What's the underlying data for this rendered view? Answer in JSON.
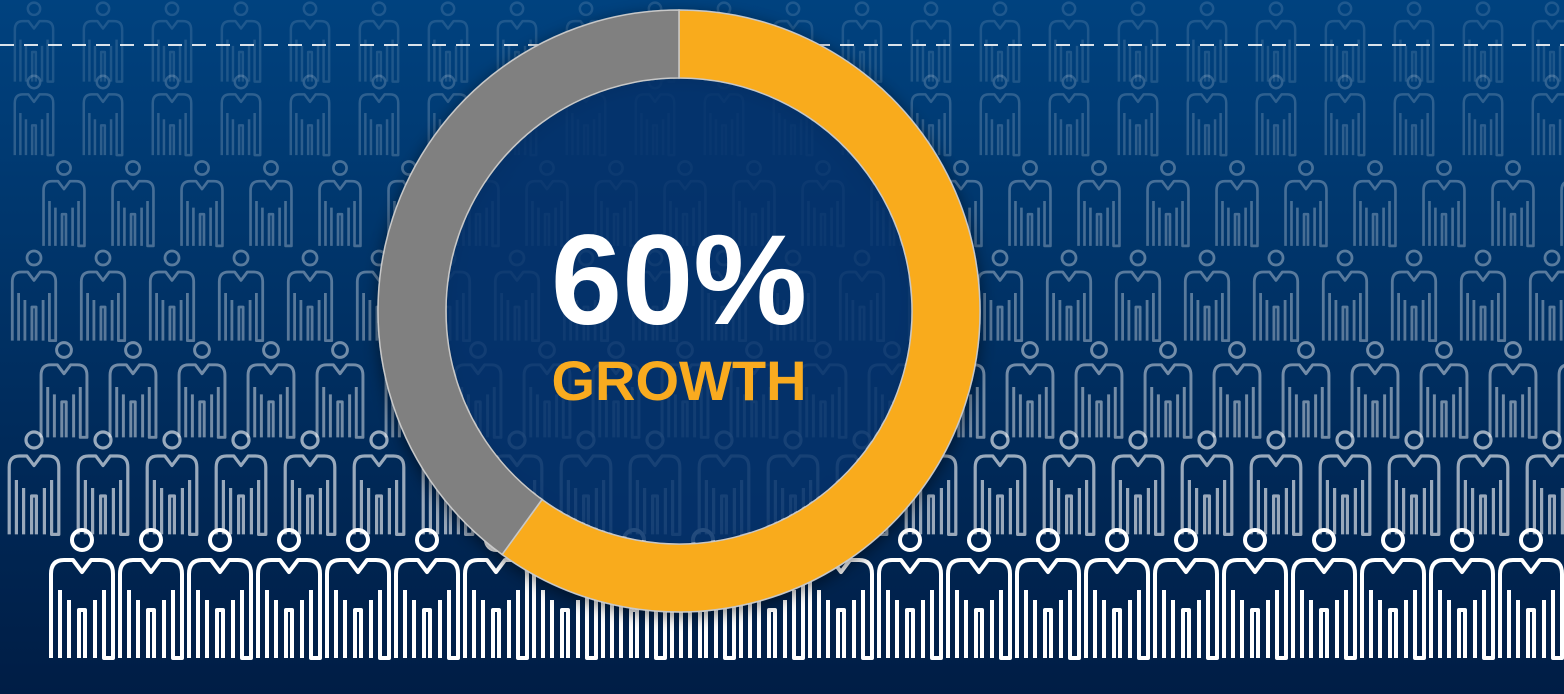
{
  "chart_data": {
    "type": "donut",
    "values": [
      60,
      40
    ],
    "value_labels": [
      "60%",
      null
    ],
    "colors": [
      "#f9ab1f",
      "#808080"
    ],
    "center_text": "GROWTH"
  }
}
